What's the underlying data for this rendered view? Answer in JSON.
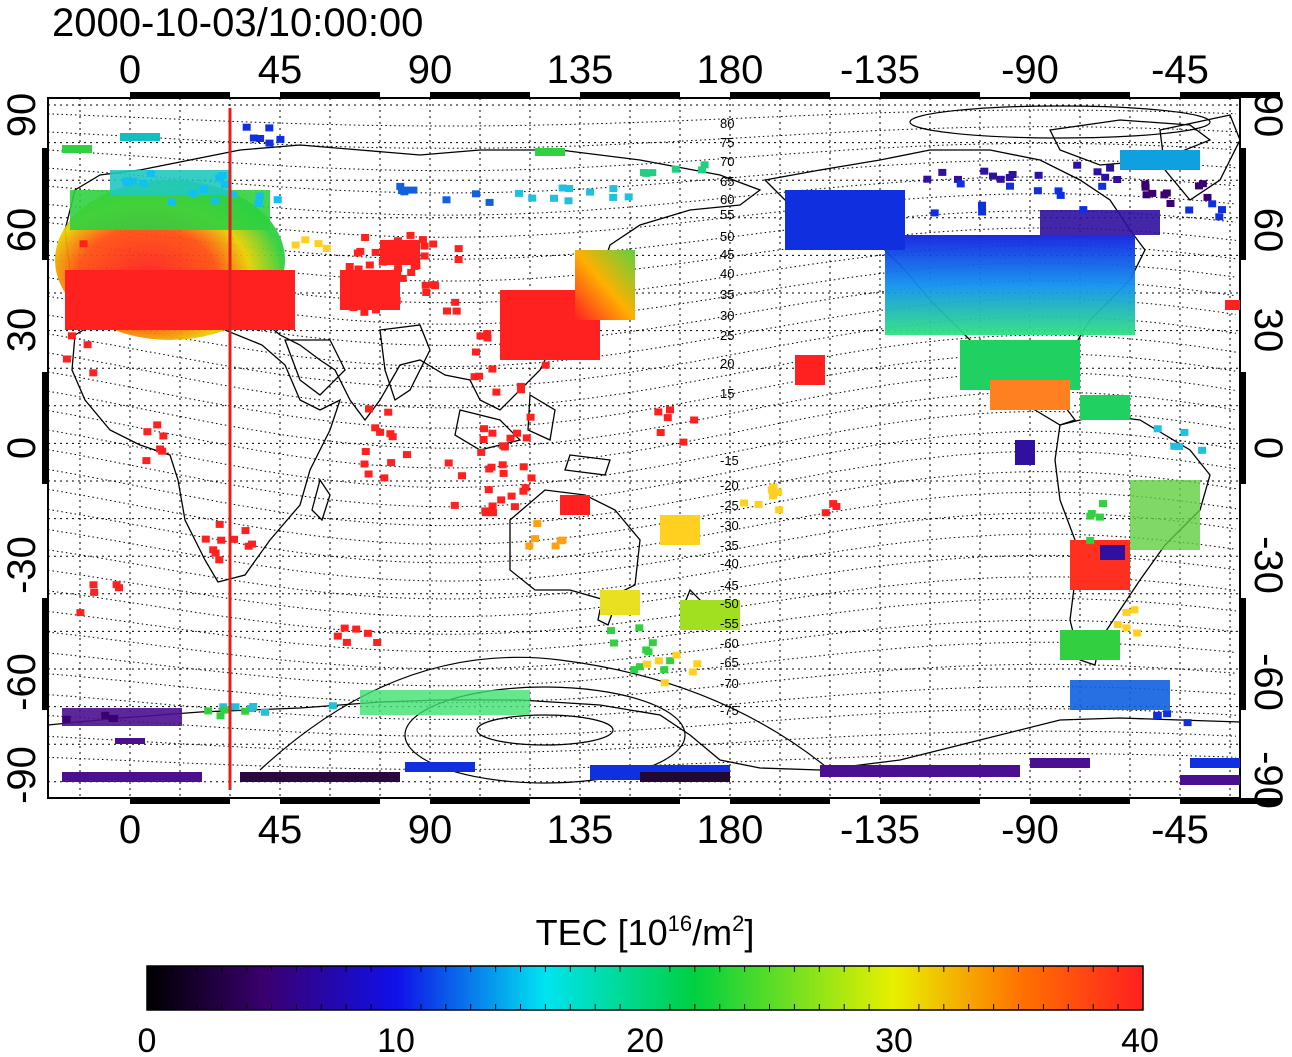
{
  "title": "2000-10-03/10:00:00",
  "axes": {
    "x_ticks": [
      "0",
      "45",
      "90",
      "135",
      "180",
      "-135",
      "-90",
      "-45"
    ],
    "y_ticks": [
      "90",
      "60",
      "30",
      "0",
      "-30",
      "-60",
      "-90"
    ]
  },
  "colorbar": {
    "label_main": "TEC  [10",
    "label_exp": "16",
    "label_mid": "/m",
    "label_exp2": "2",
    "label_end": "]",
    "ticks": [
      "0",
      "10",
      "20",
      "30",
      "40"
    ],
    "stops": [
      "#000000",
      "#3a0070",
      "#1010e8",
      "#00e4f0",
      "#00d040",
      "#e8f000",
      "#ff2020"
    ]
  },
  "contour_labels": [
    "80",
    "75",
    "70",
    "65",
    "60",
    "55",
    "50",
    "45",
    "40",
    "35",
    "30",
    "25",
    "20",
    "15",
    "-15",
    "-20",
    "-25",
    "-30",
    "-35",
    "-40",
    "-45",
    "-50",
    "-55",
    "-60",
    "-65",
    "-70",
    "-75"
  ],
  "terminator_color": "#e02020"
}
